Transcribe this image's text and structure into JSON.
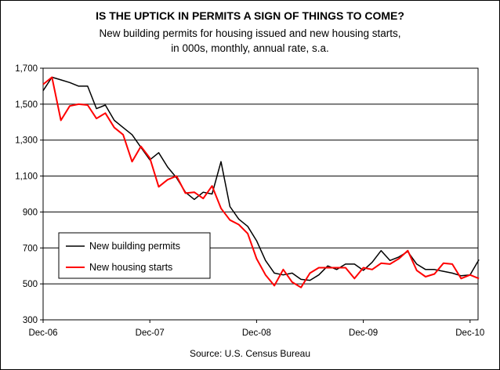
{
  "chart_data": {
    "type": "line",
    "title": "IS THE UPTICK IN PERMITS A SIGN OF THINGS TO COME?",
    "subtitle": [
      "New building permits for housing issued and new housing starts,",
      "in 000s, monthly, annual rate, s.a."
    ],
    "source": "Source: U.S. Census Bureau",
    "ylim": [
      300,
      1700
    ],
    "yticks": [
      300,
      500,
      700,
      900,
      1100,
      1300,
      1500,
      1700
    ],
    "ytick_labels": [
      "300",
      "500",
      "700",
      "900",
      "1,100",
      "1,300",
      "1,500",
      "1,700"
    ],
    "xlim": [
      0,
      48
    ],
    "xticks": [
      0,
      12,
      24,
      36,
      48
    ],
    "xtick_labels": [
      "Dec-06",
      "Dec-07",
      "Dec-08",
      "Dec-09",
      "Dec-10"
    ],
    "grid": "horizontal",
    "legend_position": "lower-left",
    "colors": {
      "permits": "#000000",
      "starts": "#ff0000"
    },
    "series": [
      {
        "name": "New building permits",
        "values": [
          1575,
          1650,
          1635,
          1620,
          1600,
          1600,
          1475,
          1495,
          1410,
          1370,
          1330,
          1260,
          1190,
          1230,
          1150,
          1090,
          1010,
          970,
          1010,
          1000,
          1180,
          930,
          860,
          820,
          740,
          630,
          560,
          550,
          560,
          525,
          520,
          550,
          600,
          580,
          610,
          610,
          575,
          620,
          685,
          630,
          650,
          680,
          610,
          580,
          580,
          570,
          560,
          545,
          550,
          635
        ]
      },
      {
        "name": "New housing starts",
        "values": [
          1610,
          1650,
          1410,
          1490,
          1500,
          1495,
          1420,
          1450,
          1370,
          1330,
          1180,
          1265,
          1200,
          1040,
          1080,
          1100,
          1005,
          1010,
          975,
          1045,
          920,
          855,
          830,
          780,
          640,
          550,
          490,
          580,
          510,
          480,
          560,
          590,
          590,
          590,
          590,
          530,
          590,
          580,
          615,
          610,
          640,
          685,
          575,
          540,
          555,
          615,
          610,
          530,
          550,
          530
        ]
      }
    ]
  }
}
